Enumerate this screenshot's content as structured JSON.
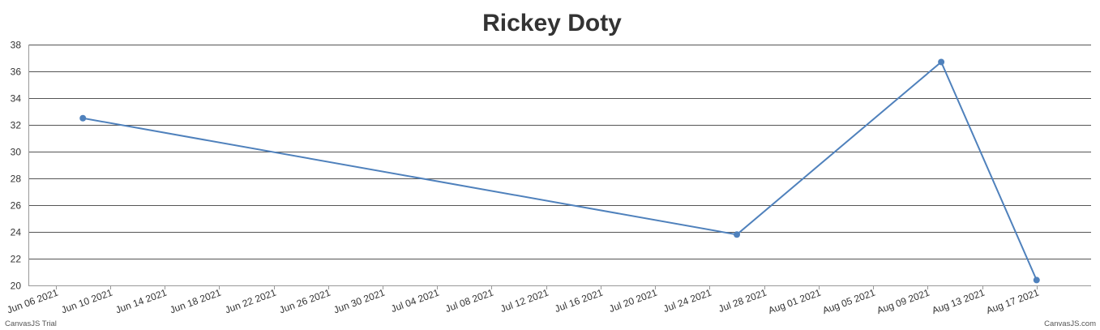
{
  "chart_data": {
    "type": "line",
    "title": "Rickey Doty",
    "xlabel": "",
    "ylabel": "",
    "x_ticks": [
      "Jun 06 2021",
      "Jun 10 2021",
      "Jun 14 2021",
      "Jun 18 2021",
      "Jun 22 2021",
      "Jun 26 2021",
      "Jun 30 2021",
      "Jul 04 2021",
      "Jul 08 2021",
      "Jul 12 2021",
      "Jul 16 2021",
      "Jul 20 2021",
      "Jul 24 2021",
      "Jul 28 2021",
      "Aug 01 2021",
      "Aug 05 2021",
      "Aug 09 2021",
      "Aug 13 2021",
      "Aug 17 2021"
    ],
    "y_ticks": [
      20,
      22,
      24,
      26,
      28,
      30,
      32,
      34,
      36,
      38
    ],
    "ylim": [
      20,
      38
    ],
    "xlim": [
      "2021-06-04",
      "2021-08-21"
    ],
    "grid": "horizontal",
    "series": [
      {
        "color": "#4f81bc",
        "points": [
          {
            "x": "2021-06-08",
            "y": 32.5
          },
          {
            "x": "2021-07-26",
            "y": 23.8
          },
          {
            "x": "2021-08-10",
            "y": 36.7
          },
          {
            "x": "2021-08-17",
            "y": 20.4
          }
        ]
      }
    ]
  },
  "credits": {
    "left": "CanvasJS Trial",
    "right": "CanvasJS.com"
  }
}
